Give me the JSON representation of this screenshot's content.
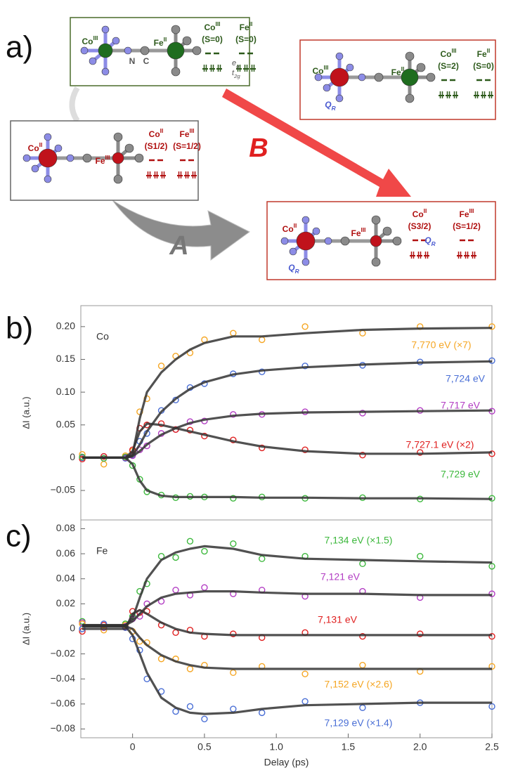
{
  "diagram": {
    "label": "a)",
    "states": [
      {
        "metals": [
          {
            "el": "Co",
            "ox": "III"
          },
          {
            "el": "Fe",
            "ox": "II"
          }
        ],
        "spins": [
          "(S=0)",
          "(S=0)"
        ],
        "bridge": [
          "N",
          "C"
        ],
        "orbitals": [
          {
            "t": "e",
            "sub": "g"
          },
          {
            "t": "t",
            "sub": "2g"
          }
        ]
      },
      {
        "metals": [
          {
            "el": "Co",
            "ox": "III"
          },
          {
            "el": "Fe",
            "ox": "II"
          }
        ],
        "spins": [
          "(S=2)",
          "(S=0)"
        ],
        "mode": {
          "t": "Q",
          "sub": "R"
        }
      },
      {
        "metals": [
          {
            "el": "Co",
            "ox": "II"
          },
          {
            "el": "Fe",
            "ox": "III"
          }
        ],
        "spins": [
          "(S1/2)",
          "(S=1/2)"
        ]
      },
      {
        "metals": [
          {
            "el": "Co",
            "ox": "II"
          },
          {
            "el": "Fe",
            "ox": "III"
          }
        ],
        "spins": [
          "(S3/2)",
          "(S=1/2)"
        ],
        "mode": {
          "t": "Q",
          "sub": "R"
        }
      }
    ],
    "arrows": [
      "A",
      "B"
    ]
  },
  "chart_data": [
    {
      "type": "scatter",
      "panel": "b)",
      "label": "Co",
      "ylabel": "ΔI (a.u.)",
      "x": [
        -0.35,
        -0.2,
        -0.05,
        0,
        0.05,
        0.1,
        0.2,
        0.3,
        0.4,
        0.5,
        0.7,
        0.9,
        1.2,
        1.6,
        2.0,
        2.5
      ],
      "xlim": [
        -0.36,
        2.5
      ],
      "ylim": [
        -0.095,
        0.232
      ],
      "yticks": [
        {
          "value": -0.05,
          "label": "−0.05"
        },
        0,
        0.05,
        {
          "value": 0.1,
          "label": "0.10"
        },
        0.15,
        {
          "value": 0.2,
          "label": "0.20"
        }
      ],
      "series": [
        {
          "name": "7,770 eV (×7)",
          "color": "#f5a623",
          "values": [
            0.005,
            -0.01,
            0.003,
            0.01,
            0.07,
            0.09,
            0.14,
            0.155,
            0.16,
            0.18,
            0.19,
            0.18,
            0.2,
            0.19,
            0.2,
            0.2
          ],
          "fit": [
            0,
            0,
            0,
            0.005,
            0.06,
            0.1,
            0.13,
            0.15,
            0.165,
            0.175,
            0.185,
            0.185,
            0.19,
            0.195,
            0.197,
            0.198
          ]
        },
        {
          "name": "7,724 eV",
          "color": "#4a6fd6",
          "values": [
            0,
            0.002,
            -0.001,
            0.004,
            0.025,
            0.037,
            0.072,
            0.088,
            0.107,
            0.113,
            0.128,
            0.131,
            0.14,
            0.141,
            0.146,
            0.148
          ],
          "fit": [
            0,
            0,
            0,
            0.003,
            0.02,
            0.04,
            0.07,
            0.09,
            0.105,
            0.115,
            0.127,
            0.133,
            0.138,
            0.142,
            0.145,
            0.147
          ]
        },
        {
          "name": "7,717 eV",
          "color": "#b23cc3",
          "values": [
            0.001,
            -0.001,
            0,
            0.003,
            0.012,
            0.018,
            0.037,
            0.043,
            0.055,
            0.056,
            0.066,
            0.066,
            0.07,
            0.068,
            0.072,
            0.071
          ],
          "fit": [
            0,
            0,
            0,
            0.002,
            0.01,
            0.02,
            0.035,
            0.045,
            0.053,
            0.058,
            0.064,
            0.067,
            0.069,
            0.07,
            0.071,
            0.072
          ]
        },
        {
          "name": "7,727.1 eV (×2)",
          "color": "#e02020",
          "values": [
            -0.002,
            0.002,
            0.001,
            0.012,
            0.045,
            0.05,
            0.052,
            0.043,
            0.042,
            0.033,
            0.027,
            0.015,
            0.012,
            0.004,
            0.008,
            0.006
          ],
          "fit": [
            0,
            0,
            0,
            0.01,
            0.04,
            0.052,
            0.05,
            0.045,
            0.04,
            0.035,
            0.025,
            0.017,
            0.01,
            0.006,
            0.006,
            0.008
          ]
        },
        {
          "name": "7,729 eV",
          "color": "#3cb83c",
          "values": [
            0.001,
            -0.001,
            0.001,
            -0.012,
            -0.033,
            -0.052,
            -0.057,
            -0.061,
            -0.059,
            -0.06,
            -0.062,
            -0.06,
            -0.062,
            -0.061,
            -0.063,
            -0.062
          ],
          "fit": [
            0,
            0,
            0,
            -0.01,
            -0.035,
            -0.05,
            -0.058,
            -0.06,
            -0.06,
            -0.06,
            -0.06,
            -0.061,
            -0.061,
            -0.062,
            -0.062,
            -0.063
          ]
        }
      ]
    },
    {
      "type": "scatter",
      "panel": "c)",
      "label": "Fe",
      "ylabel": "ΔI (a.u.)",
      "xlabel": "Delay (ps)",
      "x": [
        -0.35,
        -0.2,
        -0.05,
        0,
        0.05,
        0.1,
        0.2,
        0.3,
        0.4,
        0.5,
        0.7,
        0.9,
        1.2,
        1.6,
        2.0,
        2.5
      ],
      "xlim": [
        -0.36,
        2.5
      ],
      "ylim": [
        -0.087,
        0.087
      ],
      "xticks": [
        0,
        0.5,
        {
          "value": 1,
          "label": "1.0"
        },
        1.5,
        {
          "value": 2,
          "label": "2.0"
        },
        2.5
      ],
      "yticks": [
        {
          "value": -0.08,
          "label": "−0.08"
        },
        {
          "value": -0.06,
          "label": "−0.06"
        },
        {
          "value": -0.04,
          "label": "−0.04"
        },
        {
          "value": -0.02,
          "label": "−0.02"
        },
        0,
        0.02,
        0.04,
        0.06,
        0.08
      ],
      "series": [
        {
          "name": "7,134 eV (×1.5)",
          "color": "#3cb83c",
          "values": [
            0.006,
            0.001,
            0.004,
            0.01,
            0.03,
            0.036,
            0.058,
            0.057,
            0.07,
            0.062,
            0.068,
            0.056,
            0.058,
            0.052,
            0.058,
            0.05
          ],
          "fit": [
            0.003,
            0.003,
            0.003,
            0.008,
            0.025,
            0.04,
            0.055,
            0.061,
            0.064,
            0.066,
            0.064,
            0.059,
            0.056,
            0.055,
            0.054,
            0.053
          ]
        },
        {
          "name": "7,121 eV",
          "color": "#b23cc3",
          "values": [
            0.005,
            0.001,
            0.002,
            0.008,
            0.01,
            0.02,
            0.022,
            0.031,
            0.027,
            0.033,
            0.028,
            0.031,
            0.026,
            0.03,
            0.025,
            0.028
          ],
          "fit": [
            0.003,
            0.003,
            0.003,
            0.006,
            0.012,
            0.018,
            0.025,
            0.028,
            0.029,
            0.03,
            0.03,
            0.029,
            0.028,
            0.028,
            0.027,
            0.027
          ]
        },
        {
          "name": "7,131 eV",
          "color": "#e02020",
          "values": [
            -0.002,
            0.003,
            0.001,
            0.014,
            0.013,
            0.014,
            0.003,
            -0.003,
            -0.001,
            -0.006,
            -0.004,
            -0.007,
            -0.003,
            -0.006,
            -0.004,
            -0.006
          ],
          "fit": [
            0,
            0,
            0,
            0.012,
            0.015,
            0.012,
            0.005,
            0,
            -0.003,
            -0.004,
            -0.005,
            -0.005,
            -0.005,
            -0.005,
            -0.005,
            -0.005
          ]
        },
        {
          "name": "7,152 eV (×2.6)",
          "color": "#f5a623",
          "values": [
            0.004,
            -0.001,
            0.003,
            -0.002,
            -0.01,
            -0.011,
            -0.024,
            -0.024,
            -0.032,
            -0.029,
            -0.035,
            -0.03,
            -0.036,
            -0.029,
            -0.034,
            -0.03
          ],
          "fit": [
            0.002,
            0.002,
            0.002,
            0,
            -0.007,
            -0.013,
            -0.021,
            -0.026,
            -0.029,
            -0.031,
            -0.032,
            -0.032,
            -0.032,
            -0.032,
            -0.032,
            -0.032
          ]
        },
        {
          "name": "7,129 eV (×1.4)",
          "color": "#4a6fd6",
          "values": [
            0,
            0.004,
            0.001,
            -0.008,
            -0.017,
            -0.04,
            -0.05,
            -0.066,
            -0.062,
            -0.072,
            -0.064,
            -0.067,
            -0.058,
            -0.063,
            -0.059,
            -0.062
          ],
          "fit": [
            0.002,
            0.002,
            0.002,
            -0.005,
            -0.02,
            -0.035,
            -0.055,
            -0.063,
            -0.067,
            -0.068,
            -0.067,
            -0.064,
            -0.061,
            -0.06,
            -0.059,
            -0.059
          ]
        }
      ]
    }
  ]
}
